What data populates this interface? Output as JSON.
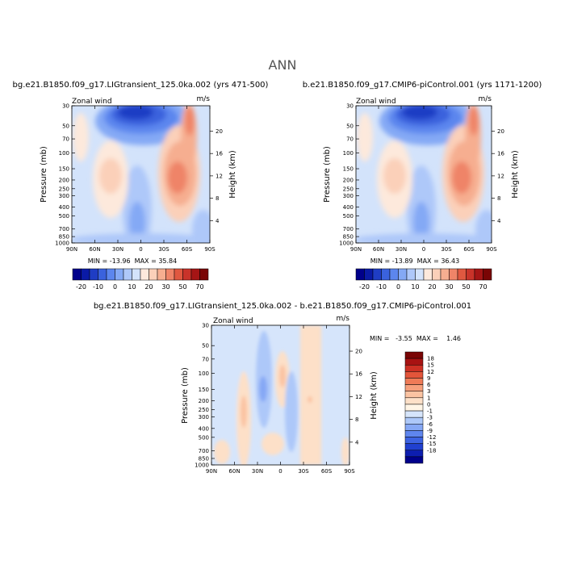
{
  "page": {
    "title": "ANN"
  },
  "colors": {
    "wind_palette_20": [
      "#00008b",
      "#0a1aa6",
      "#1f3dc4",
      "#3a62dd",
      "#5c86ee",
      "#84a9f5",
      "#aec8f9",
      "#d3e3fb",
      "#fde9dc",
      "#fbd0b9",
      "#f6ae90",
      "#ef8468",
      "#e05840",
      "#c9332a",
      "#a51515",
      "#7a0505"
    ],
    "diff_palette": [
      "#00008b",
      "#0d1eb0",
      "#2040d0",
      "#3d63e2",
      "#5f86ee",
      "#86a8f5",
      "#adc8f9",
      "#d6e5fb",
      "#fff5e6",
      "#fde0c8",
      "#fbc3a2",
      "#f6a07c",
      "#ef7b57",
      "#e3553a",
      "#cd3024",
      "#a81212",
      "#7a0505"
    ]
  },
  "chart_data": [
    {
      "type": "heatmap",
      "panel": "left",
      "title": "bg.e21.B1850.f09_g17.LIGtransient_125.0ka.002 (yrs 471-500)",
      "variable_label": "Zonal wind",
      "units_label": "m/s",
      "ylabel": "Pressure (mb)",
      "ylabel_right": "Height (km)",
      "x_ticks": [
        "90N",
        "60N",
        "30N",
        "0",
        "30S",
        "60S",
        "90S"
      ],
      "y_ticks": [
        "30",
        "50",
        "70",
        "100",
        "150",
        "200",
        "250",
        "300",
        "400",
        "500",
        "700",
        "850",
        "1000"
      ],
      "y_ticks_right": [
        "20",
        "16",
        "12",
        "8",
        "4"
      ],
      "stats": "MIN = -13.96  MAX = 35.84",
      "colorbar_labels": [
        "-20",
        "-10",
        "0",
        "10",
        "20",
        "30",
        "50",
        "70"
      ],
      "features": [
        {
          "lat": -60,
          "p_lo": 30,
          "p_hi": 70,
          "value": 35
        },
        {
          "lat": -40,
          "p_lo": 150,
          "p_hi": 250,
          "value": 30
        },
        {
          "lat": 40,
          "p_lo": 150,
          "p_hi": 300,
          "value": 12
        },
        {
          "lat": 20,
          "p_lo": 30,
          "p_hi": 70,
          "value": -13
        }
      ]
    },
    {
      "type": "heatmap",
      "panel": "right",
      "title": "b.e21.B1850.f09_g17.CMIP6-piControl.001 (yrs 1171-1200)",
      "variable_label": "Zonal wind",
      "units_label": "m/s",
      "ylabel": "Pressure (mb)",
      "ylabel_right": "Height (km)",
      "x_ticks": [
        "90N",
        "60N",
        "30N",
        "0",
        "30S",
        "60S",
        "90S"
      ],
      "y_ticks": [
        "30",
        "50",
        "70",
        "100",
        "150",
        "200",
        "250",
        "300",
        "400",
        "500",
        "700",
        "850",
        "1000"
      ],
      "y_ticks_right": [
        "20",
        "16",
        "12",
        "8",
        "4"
      ],
      "stats": "MIN = -13.89  MAX = 36.43",
      "colorbar_labels": [
        "-20",
        "-10",
        "0",
        "10",
        "20",
        "30",
        "50",
        "70"
      ],
      "features": [
        {
          "lat": -60,
          "p_lo": 30,
          "p_hi": 70,
          "value": 36
        },
        {
          "lat": -40,
          "p_lo": 150,
          "p_hi": 250,
          "value": 30
        },
        {
          "lat": 40,
          "p_lo": 150,
          "p_hi": 300,
          "value": 12
        },
        {
          "lat": 20,
          "p_lo": 30,
          "p_hi": 70,
          "value": -13
        }
      ]
    },
    {
      "type": "heatmap",
      "panel": "difference",
      "title": "bg.e21.B1850.f09_g17.LIGtransient_125.0ka.002 - b.e21.B1850.f09_g17.CMIP6-piControl.001",
      "variable_label": "Zonal wind",
      "units_label": "m/s",
      "ylabel": "Pressure (mb)",
      "ylabel_right": "Height (km)",
      "x_ticks": [
        "90N",
        "60N",
        "30N",
        "0",
        "30S",
        "60S",
        "90S"
      ],
      "y_ticks": [
        "30",
        "50",
        "70",
        "100",
        "150",
        "200",
        "250",
        "300",
        "400",
        "500",
        "700",
        "850",
        "1000"
      ],
      "y_ticks_right": [
        "20",
        "16",
        "12",
        "8",
        "4"
      ],
      "stats": "MIN =   -3.55  MAX =    1.46",
      "colorbar_labels": [
        "18",
        "15",
        "12",
        "9",
        "6",
        "3",
        "1",
        "0",
        "-1",
        "-3",
        "-6",
        "-9",
        "-12",
        "-15",
        "-18"
      ]
    }
  ]
}
